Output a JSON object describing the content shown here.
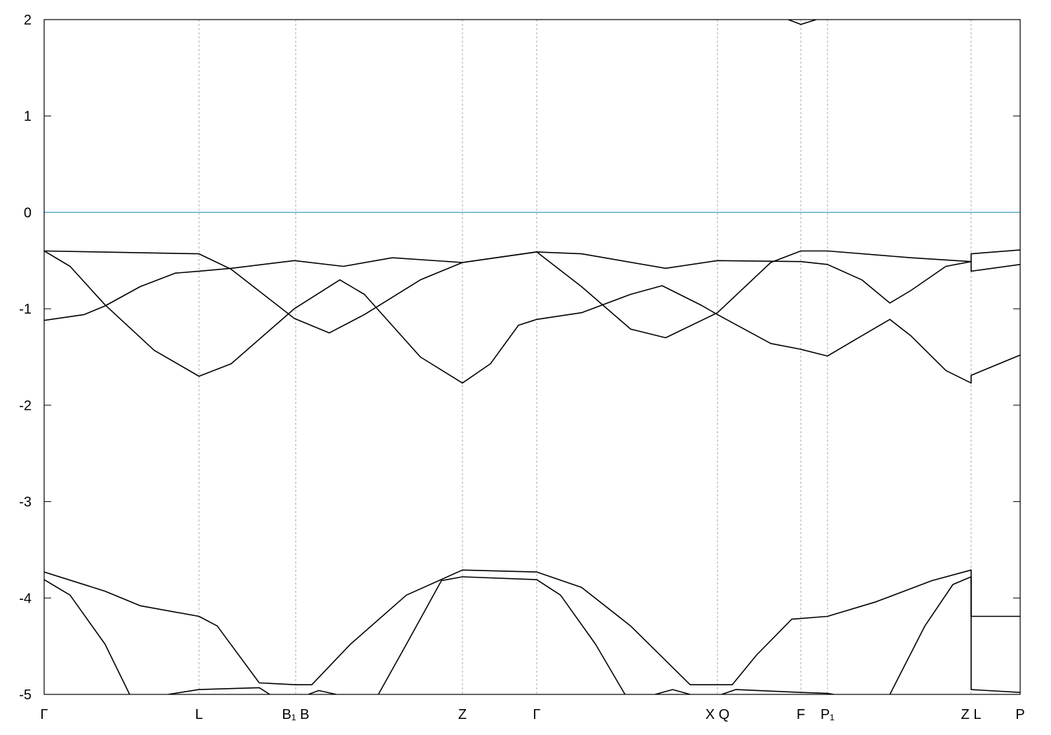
{
  "chart_data": {
    "type": "line",
    "xlim": [
      0,
      13.93
    ],
    "ylim": [
      -5,
      2
    ],
    "yticks": [
      -5,
      -4,
      -3,
      -2,
      -1,
      0,
      1,
      2
    ],
    "xticks": [
      {
        "value": 0,
        "label": "Γ"
      },
      {
        "value": 2.21,
        "label": "L"
      },
      {
        "value": 3.59,
        "label": "B₁ B"
      },
      {
        "value": 5.97,
        "label": "Z"
      },
      {
        "value": 7.03,
        "label": "Γ"
      },
      {
        "value": 9.61,
        "label": "X Q"
      },
      {
        "value": 10.8,
        "label": "F"
      },
      {
        "value": 11.18,
        "label": "P₁"
      },
      {
        "value": 13.23,
        "label": "Z L"
      },
      {
        "value": 13.93,
        "label": "P"
      }
    ],
    "xgrid": true,
    "fermi_level": 0,
    "fermi_color": "#5aaec8",
    "line_color": "#000000",
    "series": [
      {
        "color": "#000000",
        "x": [
          0,
          2.21,
          2.67,
          3.57,
          4.07,
          4.57,
          5.37,
          5.97,
          7.03,
          7.67,
          8.37,
          8.87,
          9.61,
          10.37,
          10.8,
          11.18,
          12.37,
          13.23,
          13.23,
          13.93
        ],
        "values": [
          -0.4,
          -0.43,
          -0.59,
          -1.1,
          -1.25,
          -1.06,
          -0.7,
          -0.52,
          -0.41,
          -0.77,
          -1.21,
          -1.3,
          -1.04,
          -0.52,
          -0.4,
          -0.4,
          -0.47,
          -0.51,
          -0.43,
          -0.39
        ]
      },
      {
        "color": "#000000",
        "x": [
          0,
          0.37,
          0.87,
          1.57,
          2.21,
          2.67,
          3.57,
          4.22,
          4.57,
          5.37,
          5.97,
          6.37,
          6.77,
          7.03,
          7.67,
          8.37,
          8.82,
          9.37,
          9.61,
          10.37,
          10.8,
          11.18,
          11.67,
          12.07,
          12.37,
          12.87,
          13.23,
          13.23,
          13.93
        ],
        "values": [
          -0.4,
          -0.56,
          -0.96,
          -1.43,
          -1.7,
          -1.57,
          -1.0,
          -0.7,
          -0.85,
          -1.5,
          -1.77,
          -1.57,
          -1.17,
          -1.11,
          -1.04,
          -0.85,
          -0.76,
          -0.96,
          -1.06,
          -1.36,
          -1.42,
          -1.49,
          -1.28,
          -1.11,
          -1.28,
          -1.64,
          -1.77,
          -1.69,
          -1.48
        ]
      },
      {
        "color": "#000000",
        "x": [
          0,
          0.57,
          0.87,
          1.37,
          1.87,
          2.21,
          2.67,
          3.57,
          4.27,
          4.97,
          5.97,
          7.03,
          7.67,
          8.87,
          9.61,
          10.8,
          11.18,
          11.67,
          12.07,
          12.37,
          12.87,
          13.23,
          13.23,
          13.93
        ],
        "values": [
          -1.12,
          -1.06,
          -0.97,
          -0.77,
          -0.63,
          -0.61,
          -0.58,
          -0.5,
          -0.56,
          -0.47,
          -0.52,
          -0.41,
          -0.43,
          -0.58,
          -0.5,
          -0.51,
          -0.54,
          -0.7,
          -0.94,
          -0.81,
          -0.56,
          -0.51,
          -0.61,
          -0.54
        ]
      },
      {
        "color": "#000000",
        "x": [
          0,
          0.87,
          1.37,
          2.21,
          2.47,
          3.07,
          3.59,
          3.82,
          4.37,
          5.17,
          5.97,
          7.03,
          7.67,
          8.37,
          9.22,
          9.61,
          9.82,
          10.17,
          10.67,
          11.18,
          11.87,
          12.67,
          13.23,
          13.23,
          13.93
        ],
        "values": [
          -3.73,
          -3.93,
          -4.08,
          -4.19,
          -4.29,
          -4.88,
          -4.9,
          -4.9,
          -4.48,
          -3.97,
          -3.71,
          -3.73,
          -3.89,
          -4.29,
          -4.9,
          -4.9,
          -4.9,
          -4.59,
          -4.22,
          -4.19,
          -4.04,
          -3.82,
          -3.71,
          -4.19,
          -4.19
        ]
      },
      {
        "color": "#000000",
        "x": [
          0,
          0.37,
          0.87,
          1.22,
          1.22,
          4.77,
          5.17,
          5.67,
          5.97,
          7.03,
          7.37,
          7.87,
          8.29,
          8.29,
          12.07,
          12.57,
          12.97,
          13.23,
          13.23,
          13.93
        ],
        "values": [
          -3.81,
          -3.97,
          -4.48,
          -5.0,
          null,
          -5.0,
          -4.48,
          -3.82,
          -3.78,
          -3.81,
          -3.97,
          -4.48,
          -5.0,
          null,
          -5.0,
          -4.29,
          -3.86,
          -3.78,
          -4.95,
          -4.98
        ]
      },
      {
        "color": "#000000",
        "x": [
          1.77,
          2.21,
          3.07,
          3.22,
          3.22,
          3.77,
          3.92,
          4.17,
          4.17,
          8.72,
          8.97,
          9.22,
          9.22,
          9.67,
          9.87,
          10.8,
          11.18,
          11.27
        ],
        "values": [
          -5.0,
          -4.95,
          -4.93,
          -5.0,
          null,
          -5.0,
          -4.96,
          -5.0,
          null,
          -5.0,
          -4.95,
          -5.0,
          null,
          -5.0,
          -4.95,
          -4.98,
          -4.99,
          -5.0
        ]
      },
      {
        "color": "#000000",
        "x": [
          10.62,
          10.8,
          11.02
        ],
        "values": [
          2.0,
          1.95,
          2.0
        ]
      }
    ]
  }
}
